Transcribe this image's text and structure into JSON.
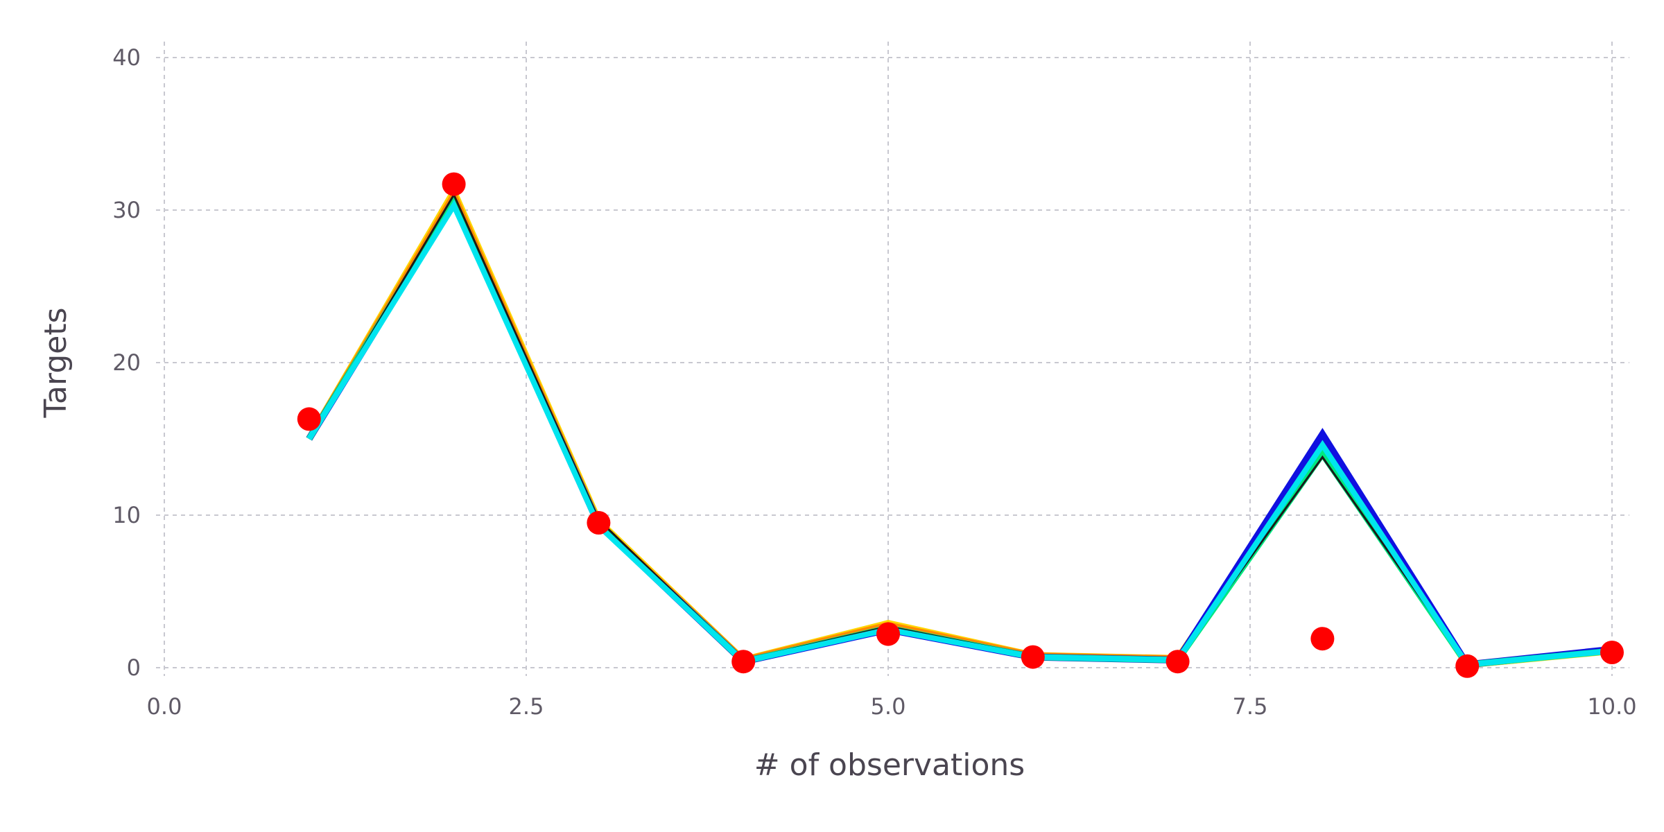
{
  "chart_data": {
    "type": "line",
    "xlabel": "# of observations",
    "ylabel": "Targets",
    "xlim": [
      0,
      10
    ],
    "ylim": [
      0,
      40
    ],
    "x_ticks": [
      0,
      2.5,
      5,
      7.5,
      10
    ],
    "x_tick_labels": [
      "0.0",
      "2.5",
      "5.0",
      "7.5",
      "10.0"
    ],
    "y_ticks": [
      0,
      10,
      20,
      30,
      40
    ],
    "y_tick_labels": [
      "0",
      "10",
      "20",
      "30",
      "40"
    ],
    "grid": true,
    "x": [
      1,
      2,
      3,
      4,
      5,
      6,
      7,
      8,
      9,
      10
    ],
    "series": [
      {
        "color": "#ffd700",
        "width": 10,
        "values": [
          15.0,
          31.2,
          9.6,
          0.5,
          2.9,
          0.8,
          0.6,
          14.5,
          0.2,
          1.1
        ]
      },
      {
        "color": "#ff8c00",
        "width": 9,
        "values": [
          15.0,
          31.0,
          9.5,
          0.5,
          2.8,
          0.8,
          0.6,
          14.2,
          0.2,
          1.1
        ]
      },
      {
        "color": "#1010e0",
        "width": 10,
        "values": [
          15.0,
          30.5,
          9.4,
          0.4,
          2.5,
          0.7,
          0.5,
          15.3,
          0.2,
          1.2
        ]
      },
      {
        "color": "#00e880",
        "width": 9,
        "values": [
          15.0,
          30.6,
          9.4,
          0.4,
          2.6,
          0.7,
          0.5,
          14.0,
          0.2,
          1.1
        ]
      },
      {
        "color": "#1a1a1a",
        "width": 3,
        "values": [
          15.0,
          31.0,
          9.7,
          0.5,
          2.7,
          0.8,
          0.6,
          13.8,
          0.2,
          1.1
        ]
      },
      {
        "color": "#00e5ee",
        "width": 8,
        "values": [
          15.0,
          30.3,
          9.3,
          0.4,
          2.5,
          0.7,
          0.5,
          14.6,
          0.2,
          1.1
        ]
      }
    ],
    "points": {
      "color": "#ff0000",
      "x": [
        1,
        2,
        3,
        4,
        5,
        6,
        7,
        8,
        9,
        10
      ],
      "y": [
        16.3,
        31.7,
        9.5,
        0.4,
        2.2,
        0.7,
        0.4,
        1.9,
        0.1,
        1.0
      ]
    }
  }
}
